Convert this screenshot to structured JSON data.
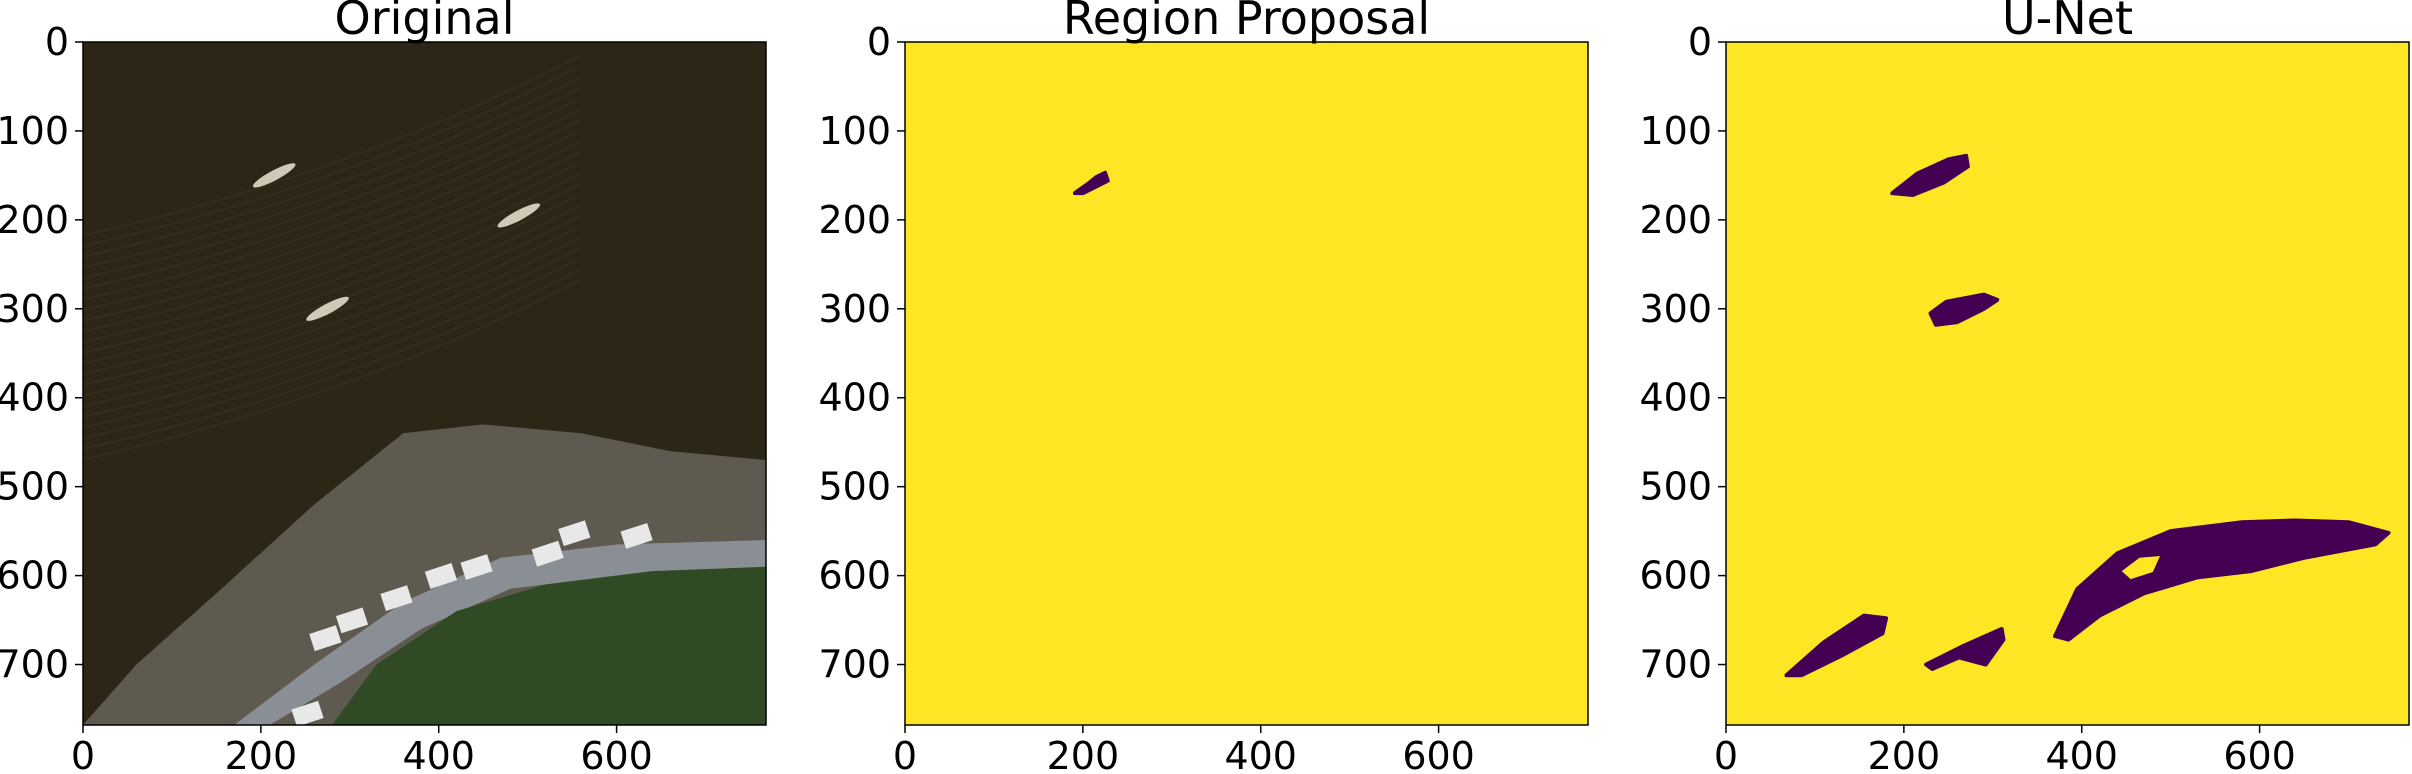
{
  "figure": {
    "panels": [
      {
        "title": "Original"
      },
      {
        "title": "Region Proposal"
      },
      {
        "title": "U-Net"
      }
    ]
  },
  "colors": {
    "mask_background": "#fde725",
    "mask_object": "#440154",
    "water": "#2b2616",
    "shore": "#5f5a4f",
    "road": "#8a8f95",
    "vegetation": "#2f4a24"
  },
  "chart_data": [
    {
      "type": "heatmap",
      "title": "Original",
      "xlabel": "",
      "ylabel": "",
      "xlim": [
        0,
        768
      ],
      "ylim": [
        768,
        0
      ],
      "xticks": [
        0,
        200,
        400,
        600
      ],
      "yticks": [
        0,
        100,
        200,
        300,
        400,
        500,
        600,
        700
      ],
      "content": "aerial image",
      "boats": [
        {
          "x": 215,
          "y": 150
        },
        {
          "x": 275,
          "y": 300
        },
        {
          "x": 490,
          "y": 195
        }
      ]
    },
    {
      "type": "heatmap",
      "title": "Region Proposal",
      "xlabel": "",
      "ylabel": "",
      "xlim": [
        0,
        768
      ],
      "ylim": [
        768,
        0
      ],
      "xticks": [
        0,
        200,
        400,
        600
      ],
      "yticks": [
        0,
        100,
        200,
        300,
        400,
        500,
        600,
        700
      ],
      "colormap": "viridis",
      "regions": [
        [
          [
            191,
            170
          ],
          [
            205,
            160
          ],
          [
            215,
            152
          ],
          [
            225,
            147
          ],
          [
            228,
            156
          ],
          [
            214,
            163
          ],
          [
            200,
            170
          ]
        ]
      ]
    },
    {
      "type": "heatmap",
      "title": "U-Net",
      "xlabel": "",
      "ylabel": "",
      "xlim": [
        0,
        768
      ],
      "ylim": [
        768,
        0
      ],
      "xticks": [
        0,
        200,
        400,
        600
      ],
      "yticks": [
        0,
        100,
        200,
        300,
        400,
        500,
        600,
        700
      ],
      "colormap": "viridis",
      "regions": [
        [
          [
            187,
            170
          ],
          [
            215,
            148
          ],
          [
            250,
            132
          ],
          [
            270,
            128
          ],
          [
            272,
            140
          ],
          [
            245,
            158
          ],
          [
            210,
            172
          ]
        ],
        [
          [
            230,
            305
          ],
          [
            248,
            292
          ],
          [
            290,
            284
          ],
          [
            305,
            290
          ],
          [
            290,
            300
          ],
          [
            260,
            315
          ],
          [
            236,
            318
          ]
        ],
        [
          [
            68,
            712
          ],
          [
            110,
            675
          ],
          [
            155,
            645
          ],
          [
            180,
            648
          ],
          [
            176,
            665
          ],
          [
            130,
            690
          ],
          [
            85,
            712
          ]
        ],
        [
          [
            225,
            700
          ],
          [
            265,
            680
          ],
          [
            310,
            660
          ],
          [
            312,
            672
          ],
          [
            292,
            700
          ],
          [
            262,
            692
          ],
          [
            232,
            705
          ]
        ],
        [
          [
            370,
            668
          ],
          [
            395,
            615
          ],
          [
            440,
            575
          ],
          [
            500,
            550
          ],
          [
            580,
            540
          ],
          [
            640,
            538
          ],
          [
            700,
            540
          ],
          [
            745,
            552
          ],
          [
            730,
            565
          ],
          [
            650,
            580
          ],
          [
            590,
            595
          ],
          [
            530,
            602
          ],
          [
            470,
            620
          ],
          [
            420,
            645
          ],
          [
            385,
            672
          ]
        ]
      ],
      "holes": [
        [
          [
            445,
            595
          ],
          [
            465,
            580
          ],
          [
            488,
            578
          ],
          [
            480,
            596
          ],
          [
            455,
            604
          ]
        ]
      ]
    }
  ]
}
